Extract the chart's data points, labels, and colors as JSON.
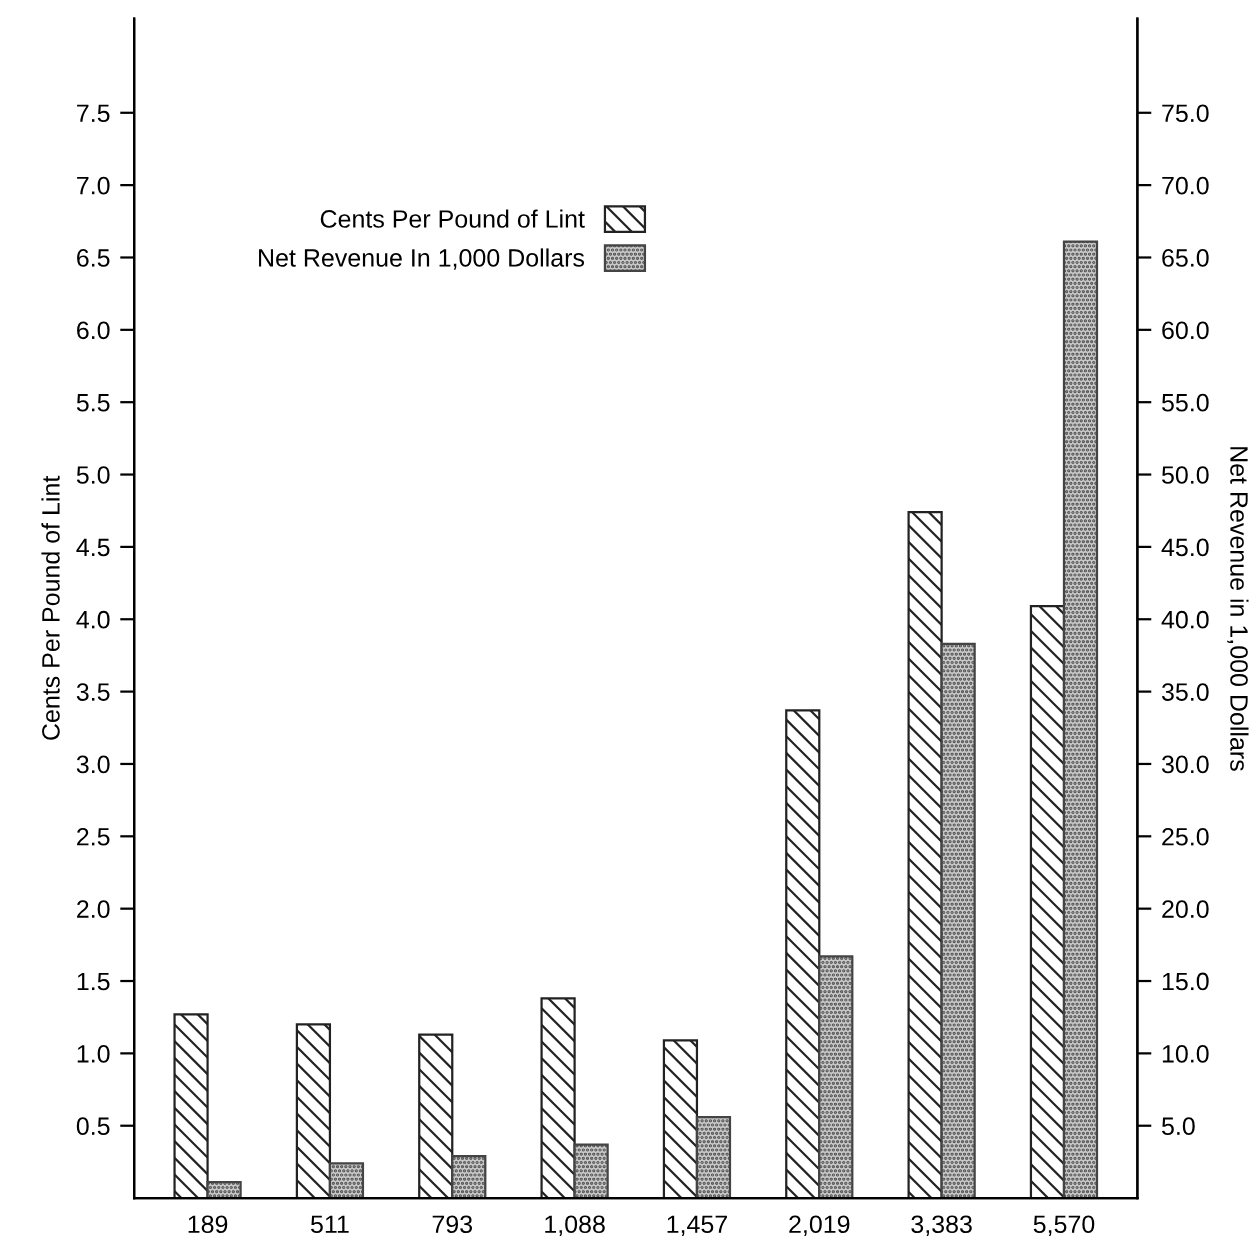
{
  "chart_data": {
    "type": "bar",
    "xlabel": null,
    "ylabel": "Cents Per Pound of Lint",
    "y2label": "Net Revenue in 1,000 Dollars",
    "categories": [
      "189",
      "511",
      "793",
      "1,088",
      "1,457",
      "2,019",
      "3,383",
      "5,570"
    ],
    "series": [
      {
        "name": "Cents Per Pound of Lint",
        "color": "#222222",
        "values": [
          1.27,
          1.2,
          1.13,
          1.38,
          1.09,
          3.37,
          4.74,
          4.09
        ]
      },
      {
        "name": "Net Revenue In 1,000 Dollars",
        "color": "#444444",
        "axis": "y2",
        "values": [
          1.1,
          2.4,
          2.9,
          3.7,
          5.6,
          16.7,
          38.3,
          66.1
        ]
      }
    ],
    "ylim": [
      0,
      8.15
    ],
    "yticks": [
      0.5,
      {
        "value": 1,
        "label": "1.0"
      },
      1.5,
      {
        "value": 2,
        "label": "2.0"
      },
      2.5,
      {
        "value": 3,
        "label": "3.0"
      },
      3.5,
      {
        "value": 4,
        "label": "4.0"
      },
      4.5,
      {
        "value": 5,
        "label": "5.0"
      },
      5.5,
      {
        "value": 6,
        "label": "6.0"
      },
      6.5,
      {
        "value": 7,
        "label": "7.0"
      },
      7.5
    ],
    "y2lim": [
      0,
      81.5
    ],
    "y2ticks": [
      {
        "value": 5,
        "label": "5.0"
      },
      {
        "value": 10,
        "label": "10.0"
      },
      {
        "value": 15,
        "label": "15.0"
      },
      {
        "value": 20,
        "label": "20.0"
      },
      {
        "value": 25,
        "label": "25.0"
      },
      {
        "value": 30,
        "label": "30.0"
      },
      {
        "value": 35,
        "label": "35.0"
      },
      {
        "value": 40,
        "label": "40.0"
      },
      {
        "value": 45,
        "label": "45.0"
      },
      {
        "value": 50,
        "label": "50.0"
      },
      {
        "value": 55,
        "label": "55.0"
      },
      {
        "value": 60,
        "label": "60.0"
      },
      {
        "value": 65,
        "label": "65.0"
      },
      {
        "value": 70,
        "label": "70.0"
      },
      {
        "value": 75,
        "label": "75.0"
      }
    ],
    "legend": "top left",
    "grid": false
  }
}
